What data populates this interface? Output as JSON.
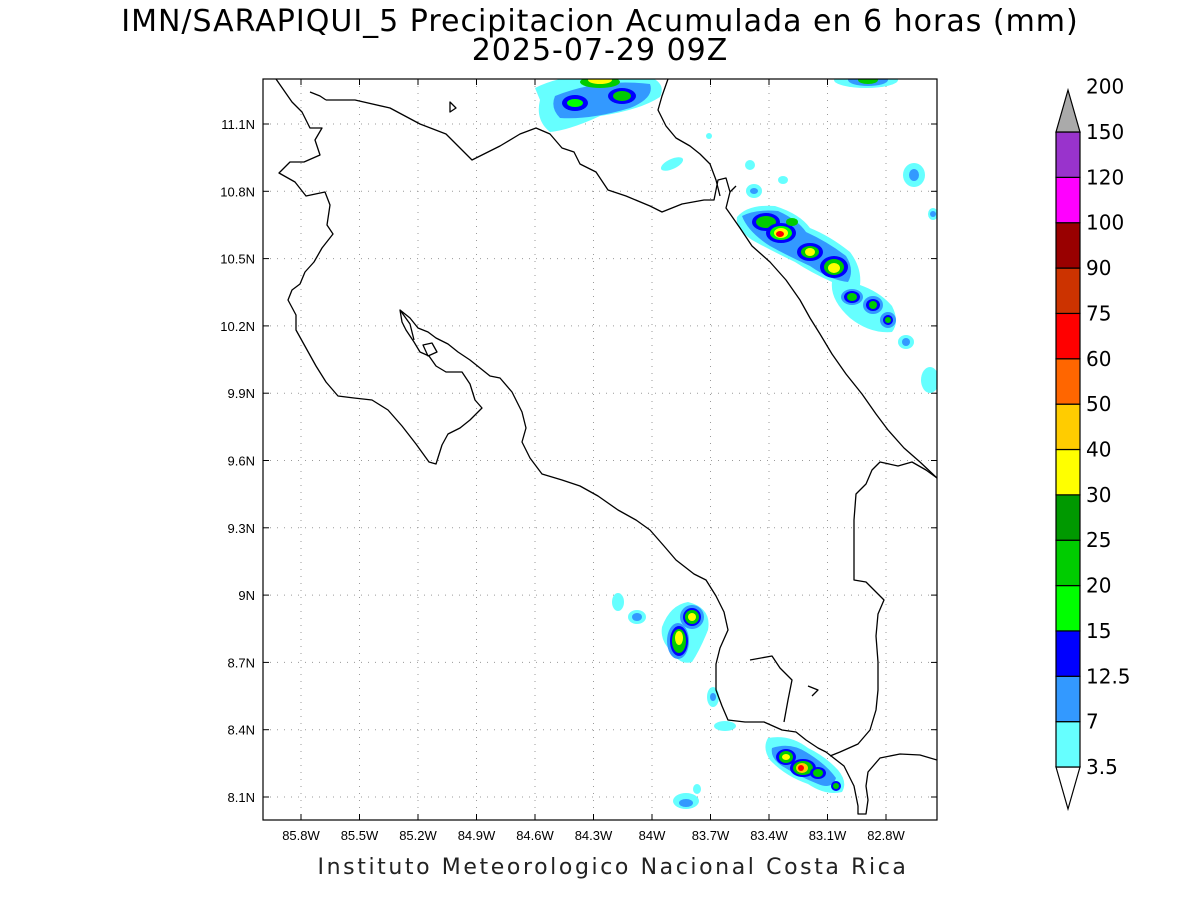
{
  "header": {
    "title_line1": "IMN/SARAPIQUI_5 Precipitacion Acumulada en 6 horas (mm)",
    "title_line2": "2025-07-29 09Z"
  },
  "footer": {
    "credit": "Instituto Meteorologico Nacional Costa Rica"
  },
  "axes": {
    "lat_labels": [
      "11.1N",
      "10.8N",
      "10.5N",
      "10.2N",
      "9.9N",
      "9.6N",
      "9.3N",
      "9N",
      "8.7N",
      "8.4N",
      "8.1N"
    ],
    "lon_labels": [
      "85.8W",
      "85.5W",
      "85.2W",
      "84.9W",
      "84.6W",
      "84.3W",
      "84W",
      "83.7W",
      "83.4W",
      "83.1W",
      "82.8W"
    ]
  },
  "colorbar": {
    "labels": [
      "3.5",
      "7",
      "12.5",
      "15",
      "20",
      "25",
      "30",
      "40",
      "50",
      "60",
      "75",
      "90",
      "100",
      "120",
      "150",
      "200"
    ],
    "colors": [
      "#66ffff",
      "#3399ff",
      "#0000ff",
      "#00ff00",
      "#00cc00",
      "#009900",
      "#ffff00",
      "#ffcc00",
      "#ff6600",
      "#ff0000",
      "#cc3300",
      "#990000",
      "#ff00ff",
      "#9933cc",
      "#f5f5f5",
      "#aaaaaa"
    ]
  },
  "precipitation_cells": [
    {
      "region": "northern coast",
      "peak": "15-20"
    },
    {
      "region": "caribbean band north",
      "peak": "60-75"
    },
    {
      "region": "caribbean band",
      "peak": "40-50"
    },
    {
      "region": "central pacific",
      "peak": "30-40"
    },
    {
      "region": "southern pacific",
      "peak": "60-75"
    }
  ]
}
